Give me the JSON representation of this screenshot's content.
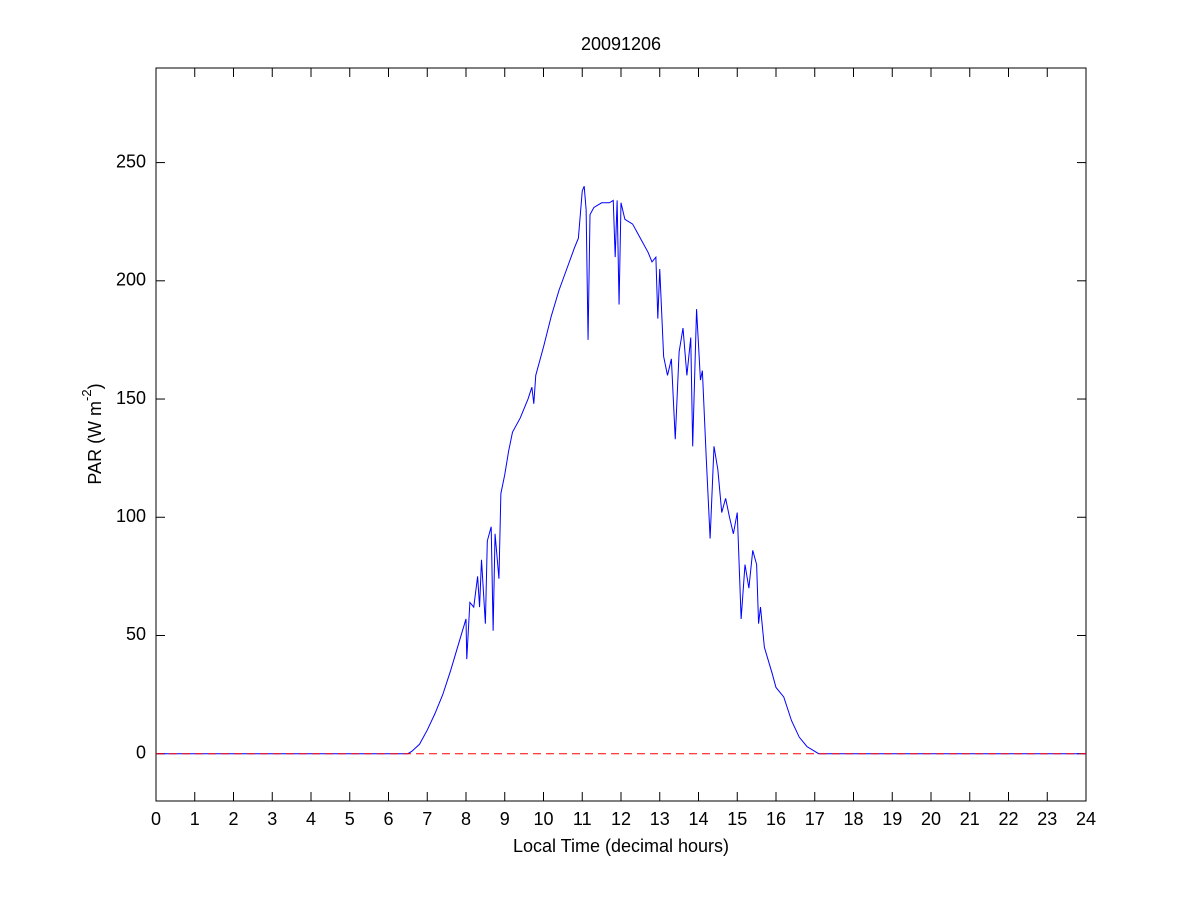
{
  "chart_data": {
    "type": "line",
    "title": "20091206",
    "xlabel": "Local Time (decimal hours)",
    "ylabel_parts": [
      "PAR (W m",
      "-2",
      ")"
    ],
    "xlim": [
      0,
      24
    ],
    "ylim": [
      -20,
      290
    ],
    "xticks": [
      0,
      1,
      2,
      3,
      4,
      5,
      6,
      7,
      8,
      9,
      10,
      11,
      12,
      13,
      14,
      15,
      16,
      17,
      18,
      19,
      20,
      21,
      22,
      23,
      24
    ],
    "yticks": [
      0,
      50,
      100,
      150,
      200,
      250
    ],
    "grid": false,
    "reference_line": {
      "y": 0,
      "color": "#ff0000",
      "style": "dashed"
    },
    "series": [
      {
        "color": "#0000ff",
        "x": [
          0,
          2,
          4,
          6,
          6.5,
          6.6,
          6.8,
          7.0,
          7.2,
          7.4,
          7.6,
          7.8,
          8.0,
          8.02,
          8.1,
          8.2,
          8.3,
          8.35,
          8.4,
          8.5,
          8.55,
          8.65,
          8.7,
          8.75,
          8.85,
          8.9,
          9.0,
          9.1,
          9.2,
          9.4,
          9.6,
          9.7,
          9.75,
          9.8,
          10.0,
          10.2,
          10.4,
          10.6,
          10.8,
          10.9,
          11.0,
          11.05,
          11.1,
          11.15,
          11.2,
          11.3,
          11.5,
          11.7,
          11.8,
          11.85,
          11.9,
          11.95,
          12.0,
          12.1,
          12.3,
          12.5,
          12.7,
          12.8,
          12.9,
          12.95,
          13.0,
          13.1,
          13.2,
          13.3,
          13.4,
          13.5,
          13.6,
          13.7,
          13.8,
          13.85,
          13.95,
          14.05,
          14.1,
          14.2,
          14.3,
          14.4,
          14.5,
          14.6,
          14.7,
          14.8,
          14.9,
          15.0,
          15.1,
          15.2,
          15.3,
          15.4,
          15.5,
          15.55,
          15.6,
          15.7,
          15.9,
          16.0,
          16.2,
          16.4,
          16.6,
          16.8,
          17.0,
          17.1,
          18,
          20,
          22,
          24
        ],
        "values": [
          0,
          0,
          0,
          0,
          0,
          1,
          4,
          10,
          17,
          25,
          35,
          46,
          57,
          40,
          64,
          62,
          75,
          62,
          82,
          55,
          90,
          96,
          52,
          93,
          74,
          110,
          118,
          128,
          136,
          142,
          150,
          155,
          148,
          160,
          172,
          185,
          196,
          205,
          214,
          218,
          238,
          240,
          230,
          175,
          228,
          231,
          233,
          233,
          234,
          210,
          234,
          190,
          233,
          226,
          224,
          218,
          212,
          208,
          210,
          184,
          205,
          168,
          160,
          167,
          133,
          170,
          180,
          160,
          176,
          130,
          188,
          158,
          162,
          125,
          91,
          130,
          120,
          102,
          108,
          100,
          93,
          102,
          57,
          80,
          70,
          86,
          80,
          55,
          62,
          45,
          34,
          28,
          24,
          14,
          7,
          3,
          1,
          0,
          0,
          0,
          0,
          0
        ]
      }
    ]
  }
}
